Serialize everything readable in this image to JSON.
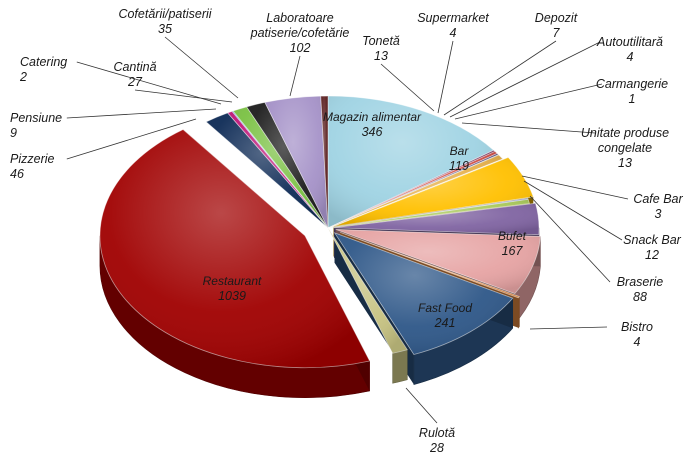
{
  "chart_data": {
    "type": "pie",
    "style": "3d-exploded",
    "legend": "none",
    "title": "",
    "slices": [
      {
        "label": "Magazin alimentar",
        "value": 346,
        "color": "#9fd3e3"
      },
      {
        "label": "Supermarket",
        "value": 4,
        "color": "#7f3a66"
      },
      {
        "label": "Depozit",
        "value": 7,
        "color": "#d24f47"
      },
      {
        "label": "Autoutilitară",
        "value": 4,
        "color": "#5b4b7a"
      },
      {
        "label": "Carmangerie",
        "value": 1,
        "color": "#2f6fa8"
      },
      {
        "label": "Unitate produse congelate",
        "value": 13,
        "color": "#e6b04a"
      },
      {
        "label": "Bar",
        "value": 119,
        "color": "#ffc000"
      },
      {
        "label": "Cafe Bar",
        "value": 3,
        "color": "#6a7fd6"
      },
      {
        "label": "Snack Bar",
        "value": 12,
        "color": "#a9c95a"
      },
      {
        "label": "Braserie",
        "value": 88,
        "color": "#8064a2"
      },
      {
        "label": "Bufet",
        "value": 167,
        "color": "#e6a3a3"
      },
      {
        "label": "Bistro",
        "value": 4,
        "color": "#f79646"
      },
      {
        "label": "Fast Food",
        "value": 241,
        "color": "#2e5788"
      },
      {
        "label": "Rulotă",
        "value": 28,
        "color": "#c6c281"
      },
      {
        "label": "Restaurant",
        "value": 1039,
        "color": "#a00000"
      },
      {
        "label": "Pizzerie",
        "value": 46,
        "color": "#0d2a55"
      },
      {
        "label": "Pensiune",
        "value": 9,
        "color": "#c0187a"
      },
      {
        "label": "Catering",
        "value": 2,
        "color": "#3a7fd0"
      },
      {
        "label": "Cantină",
        "value": 27,
        "color": "#7ac143"
      },
      {
        "label": "Cofetării/patiserii",
        "value": 35,
        "color": "#1c1c1c"
      },
      {
        "label": "Laboratoare patiserie/cofetărie",
        "value": 102,
        "color": "#a592c8"
      },
      {
        "label": "Tonetă",
        "value": 13,
        "color": "#5a1e1e"
      }
    ]
  }
}
